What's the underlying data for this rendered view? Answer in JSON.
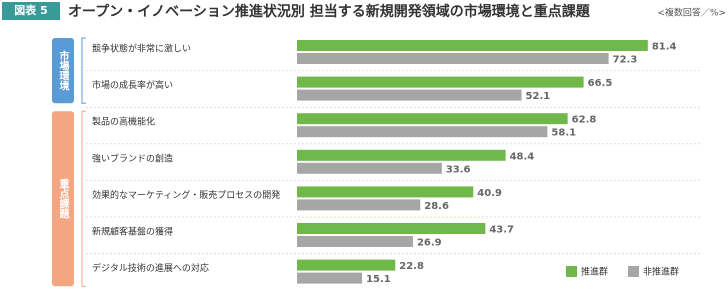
{
  "chart_data": {
    "type": "bar",
    "badge": "図表 5",
    "title": "オープン・イノベーション推進状況別 担当する新規開発領域の市場環境と重点課題",
    "note": "<複数回答／%>",
    "groups": [
      {
        "label": "市場環境",
        "color": "#5b9bd5",
        "categories": [
          "競争状態が非常に激しい",
          "市場の成長率が高い"
        ]
      },
      {
        "label": "重点課題",
        "color": "#f4a582",
        "categories": [
          "製品の高機能化",
          "強いブランドの創造",
          "効果的なマーケティング・販売プロセスの開発",
          "新規顧客基盤の獲得",
          "デジタル技術の進展への対応"
        ]
      }
    ],
    "series": [
      {
        "name": "推進群",
        "color": "#70b84a",
        "values": [
          81.4,
          66.5,
          62.8,
          48.4,
          40.9,
          43.7,
          22.8
        ]
      },
      {
        "name": "非推進群",
        "color": "#a6a6a6",
        "values": [
          72.3,
          52.1,
          58.1,
          33.6,
          28.6,
          26.9,
          15.1
        ]
      }
    ],
    "legend": "bottom-right"
  }
}
